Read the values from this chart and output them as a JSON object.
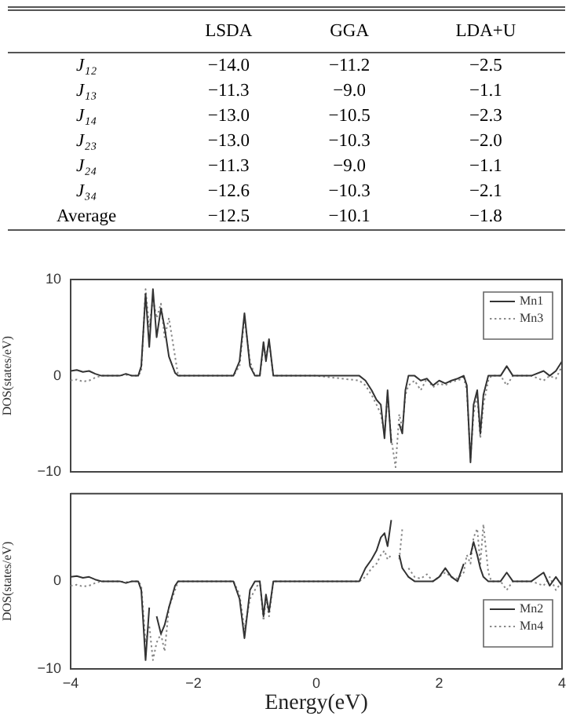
{
  "chart_data": [
    {
      "type": "other",
      "categories": [
        "J₁₂",
        "J₁₃",
        "J₁₄",
        "J₂₃",
        "J₂₄",
        "J₃₄",
        "Average"
      ],
      "data_labels": true,
      "series": [
        {
          "name": "LSDA",
          "values": [
            -14.0,
            -11.3,
            -13.0,
            -13.0,
            -11.3,
            -12.6,
            -12.5
          ],
          "value_labels": [
            "−14.0",
            "−11.3",
            "−13.0",
            "−13.0",
            "−11.3",
            "−12.6",
            "−12.5"
          ]
        },
        {
          "name": "GGA",
          "values": [
            -11.2,
            -9.0,
            -10.5,
            -10.3,
            -9.0,
            -10.3,
            -10.1
          ],
          "value_labels": [
            "−11.2",
            "−9.0",
            "−10.5",
            "−10.3",
            "−9.0",
            "−10.3",
            "−10.1"
          ]
        },
        {
          "name": "LDA+U",
          "values": [
            -2.5,
            -1.1,
            -2.3,
            -2.0,
            -1.1,
            -2.1,
            -1.8
          ],
          "value_labels": [
            "−2.5",
            "−1.1",
            "−2.3",
            "−2.0",
            "−1.1",
            "−2.1",
            "−1.8"
          ]
        }
      ]
    },
    {
      "type": "line",
      "ylabel": "DOS(states/eV)",
      "xlim": [
        -4,
        4
      ],
      "xticks": [
        -4,
        -2,
        0,
        2,
        4
      ],
      "ylim": [
        -10,
        10
      ],
      "yticks": [
        -10,
        0,
        10
      ],
      "tick_labels": "y",
      "legend": "top right",
      "series": [
        {
          "name": "Mn1",
          "color": "#333333",
          "line_style": "solid",
          "x": [
            -4,
            -3.9,
            -3.8,
            -3.7,
            -3.6,
            -3.5,
            -3.2,
            -3.1,
            -3.0,
            -2.9,
            -2.85,
            -2.78,
            -2.72,
            -2.66,
            -2.6,
            -2.53,
            -2.47,
            -2.4,
            -2.3,
            -2.25,
            -2.0,
            -1.35,
            -1.25,
            -1.17,
            -1.08,
            -1.0,
            -0.92,
            -0.86,
            -0.82,
            -0.77,
            -0.7,
            -0.6,
            0,
            0.7,
            0.8,
            0.9,
            0.98,
            1.05,
            1.11,
            1.16,
            1.22,
            1.29,
            1.35,
            1.4,
            1.45,
            1.5,
            1.6,
            1.7,
            1.8,
            1.9,
            2.0,
            2.1,
            2.2,
            2.3,
            2.4,
            2.45,
            2.51,
            2.56,
            2.62,
            2.67,
            2.72,
            2.8,
            2.85,
            3.0,
            3.1,
            3.2,
            3.5,
            3.7,
            3.8,
            3.9,
            4
          ],
          "values": [
            0.5,
            0.6,
            0.4,
            0.5,
            0.2,
            0,
            0,
            0.2,
            0,
            0,
            1,
            8.5,
            3,
            9,
            4,
            7,
            5,
            2,
            0.3,
            0,
            0,
            0,
            1.5,
            6.5,
            1,
            0,
            0,
            3.5,
            1.5,
            3.8,
            0,
            0,
            0,
            0,
            -0.5,
            -1.5,
            -2.5,
            -3,
            -6.5,
            -1.5,
            -7,
            null,
            -5,
            -6,
            -1.5,
            0,
            0,
            -0.5,
            -0.3,
            -1,
            -0.5,
            -0.8,
            -0.5,
            -0.3,
            0,
            -1,
            -9,
            -3,
            -1.5,
            -6,
            -2,
            0,
            0,
            0,
            1,
            0,
            0,
            0.5,
            0,
            0.5,
            1.5
          ]
        },
        {
          "name": "Mn3",
          "color": "#888888",
          "line_style": "dotted",
          "x": [
            -4,
            -3.9,
            -3.8,
            -3.7,
            -3.6,
            -3.5,
            -3.2,
            -3.1,
            -3.0,
            -2.9,
            -2.85,
            -2.78,
            -2.72,
            -2.66,
            -2.6,
            -2.53,
            -2.47,
            -2.4,
            -2.3,
            -2.25,
            -2.0,
            -1.35,
            -1.25,
            -1.17,
            -1.08,
            -1.0,
            -0.92,
            -0.86,
            -0.82,
            -0.77,
            -0.7,
            -0.6,
            0,
            0.7,
            0.8,
            0.9,
            0.98,
            1.05,
            1.11,
            1.16,
            1.22,
            1.29,
            1.35,
            1.4,
            1.45,
            1.5,
            1.6,
            1.7,
            1.8,
            1.9,
            2.0,
            2.1,
            2.2,
            2.3,
            2.4,
            2.45,
            2.51,
            2.56,
            2.62,
            2.67,
            2.72,
            2.8,
            2.85,
            3.0,
            3.1,
            3.2,
            3.5,
            3.7,
            3.8,
            3.9,
            4
          ],
          "values": [
            -0.5,
            -0.4,
            -0.6,
            -0.5,
            -0.2,
            0,
            0,
            0.1,
            0,
            0,
            0.5,
            9,
            5,
            8,
            6,
            7.5,
            4,
            6,
            2,
            0,
            0,
            0,
            1,
            6,
            1.5,
            0,
            0,
            3,
            2,
            3.5,
            0,
            0,
            0,
            -0.5,
            -1,
            -2,
            -3,
            -4,
            -6,
            -2,
            -6.5,
            -9.5,
            -4,
            -5.5,
            -2,
            -1,
            -0.5,
            -1.5,
            -0.3,
            -1.2,
            -0.8,
            -1,
            -0.6,
            -0.5,
            -0.2,
            -1.5,
            -8.5,
            -4,
            -2,
            -6.5,
            -3,
            -0.5,
            0,
            0,
            -1,
            0,
            0,
            -0.5,
            0,
            -0.3,
            1
          ]
        }
      ]
    },
    {
      "type": "line",
      "ylabel": "DOS(states/eV)",
      "xlabel": "Energy(eV)",
      "xlim": [
        -4,
        4
      ],
      "xticks": [
        -4,
        -2,
        0,
        2,
        4
      ],
      "ylim": [
        -10,
        10
      ],
      "yticks": [
        0,
        -10
      ],
      "legend": "bottom right",
      "series": [
        {
          "name": "Mn2",
          "color": "#333333",
          "line_style": "solid",
          "x": [
            -4,
            -3.9,
            -3.8,
            -3.7,
            -3.6,
            -3.5,
            -3.2,
            -3.1,
            -3.0,
            -2.9,
            -2.85,
            -2.78,
            -2.72,
            -2.66,
            -2.6,
            -2.53,
            -2.47,
            -2.4,
            -2.3,
            -2.25,
            -2.0,
            -1.35,
            -1.25,
            -1.17,
            -1.08,
            -1.0,
            -0.92,
            -0.86,
            -0.82,
            -0.77,
            -0.7,
            -0.6,
            0,
            0.7,
            0.8,
            0.9,
            0.98,
            1.05,
            1.11,
            1.16,
            1.22,
            1.29,
            1.35,
            1.4,
            1.45,
            1.5,
            1.6,
            1.7,
            1.8,
            1.9,
            2.0,
            2.1,
            2.2,
            2.3,
            2.4,
            2.45,
            2.51,
            2.56,
            2.62,
            2.67,
            2.72,
            2.8,
            2.85,
            3.0,
            3.1,
            3.2,
            3.5,
            3.7,
            3.8,
            3.9,
            4
          ],
          "values": [
            0.5,
            0.6,
            0.4,
            0.5,
            0.2,
            0,
            0,
            -0.2,
            0,
            0,
            -1,
            -9,
            -3,
            null,
            -4,
            -6,
            -5,
            -3,
            -0.5,
            0,
            0,
            0,
            -2,
            -6.5,
            -1,
            0,
            0,
            -4,
            -1.5,
            -3.5,
            0,
            0,
            0,
            0,
            1.5,
            2.5,
            3.5,
            5,
            5.5,
            4,
            7,
            null,
            3,
            1.5,
            1,
            0.5,
            0,
            0,
            0,
            0,
            0.5,
            1.5,
            0.5,
            0,
            2,
            null,
            3,
            4.5,
            3,
            1.5,
            0.5,
            0,
            0,
            0,
            1,
            0,
            0,
            1,
            -0.5,
            0.5,
            -0.5
          ]
        },
        {
          "name": "Mn4",
          "color": "#888888",
          "line_style": "dotted",
          "x": [
            -4,
            -3.9,
            -3.8,
            -3.7,
            -3.6,
            -3.5,
            -3.2,
            -3.1,
            -3.0,
            -2.9,
            -2.85,
            -2.78,
            -2.72,
            -2.66,
            -2.6,
            -2.53,
            -2.47,
            -2.4,
            -2.3,
            -2.25,
            -2.0,
            -1.35,
            -1.25,
            -1.17,
            -1.08,
            -1.0,
            -0.92,
            -0.86,
            -0.82,
            -0.77,
            -0.7,
            -0.6,
            0,
            0.7,
            0.8,
            0.9,
            0.98,
            1.05,
            1.11,
            1.16,
            1.22,
            1.29,
            1.35,
            1.4,
            1.45,
            1.5,
            1.6,
            1.7,
            1.8,
            1.9,
            2.0,
            2.1,
            2.2,
            2.3,
            2.4,
            2.45,
            2.51,
            2.56,
            2.62,
            2.67,
            2.72,
            2.8,
            2.85,
            3.0,
            3.1,
            3.2,
            3.5,
            3.7,
            3.8,
            3.9,
            4
          ],
          "values": [
            -0.5,
            -0.4,
            -0.6,
            -0.5,
            -0.2,
            0,
            0,
            -0.1,
            0,
            0,
            -0.5,
            -7,
            -5,
            -9,
            -7,
            -6,
            -8,
            -3,
            -1,
            0,
            0,
            0,
            -1.5,
            -5.5,
            -2,
            -1,
            0,
            -4.5,
            -2,
            -4,
            0,
            0,
            0,
            0,
            0.5,
            1.5,
            2,
            3,
            3.5,
            2.5,
            3,
            null,
            2.5,
            6,
            null,
            1.5,
            0.5,
            0.3,
            0.8,
            0,
            0.5,
            1,
            0.5,
            0.3,
            1,
            3,
            2,
            5,
            6,
            2,
            6.5,
            1,
            0,
            0,
            -1,
            0,
            0,
            -0.5,
            0.5,
            -1,
            0
          ]
        }
      ]
    }
  ]
}
